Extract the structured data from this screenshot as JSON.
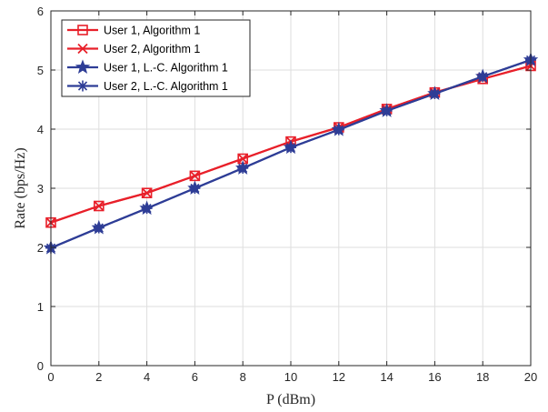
{
  "chart_data": {
    "type": "line",
    "xlabel": "P (dBm)",
    "ylabel": "Rate (bps/Hz)",
    "xlim": [
      0,
      20
    ],
    "ylim": [
      0,
      6
    ],
    "x_ticks": [
      0,
      2,
      4,
      6,
      8,
      10,
      12,
      14,
      16,
      18,
      20
    ],
    "y_ticks": [
      0,
      1,
      2,
      3,
      4,
      5,
      6
    ],
    "grid": true,
    "legend_position": "top-left",
    "x": [
      0,
      2,
      4,
      6,
      8,
      10,
      12,
      14,
      16,
      18,
      20
    ],
    "series": [
      {
        "name": "User 1, Algorithm 1",
        "color": "#e8202a",
        "marker": "square",
        "values": [
          2.42,
          2.7,
          2.92,
          3.21,
          3.5,
          3.79,
          4.03,
          4.34,
          4.62,
          4.85,
          5.07
        ]
      },
      {
        "name": "User 2, Algorithm 1",
        "color": "#e8202a",
        "marker": "x",
        "values": [
          2.42,
          2.7,
          2.92,
          3.21,
          3.5,
          3.79,
          4.03,
          4.34,
          4.62,
          4.85,
          5.07
        ]
      },
      {
        "name": "User 1, L.-C. Algorithm 1",
        "color": "#2e3d96",
        "marker": "pentagram",
        "values": [
          1.99,
          2.33,
          2.66,
          3.0,
          3.34,
          3.69,
          3.99,
          4.31,
          4.6,
          4.89,
          5.17
        ]
      },
      {
        "name": "User 2, L.-C. Algorithm 1",
        "color": "#2e3d96",
        "marker": "asterisk",
        "values": [
          1.99,
          2.33,
          2.66,
          3.0,
          3.34,
          3.69,
          3.99,
          4.31,
          4.6,
          4.89,
          5.17
        ]
      }
    ]
  }
}
